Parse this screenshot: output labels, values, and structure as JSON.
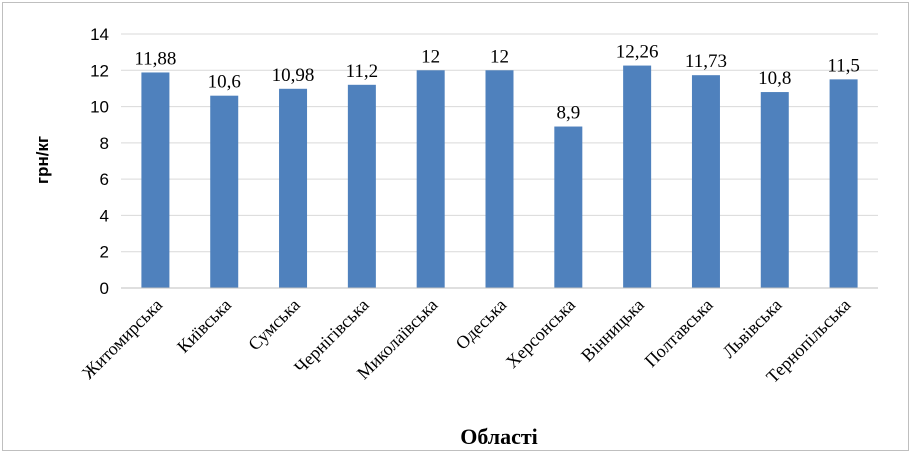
{
  "chart_data": {
    "type": "bar",
    "categories": [
      "Житомирська",
      "Київська",
      "Сумська",
      "Чернігівська",
      "Миколаївська",
      "Одеська",
      "Херсонська",
      "Вінницька",
      "Полтавська",
      "Львівська",
      "Тернопільська"
    ],
    "values": [
      11.88,
      10.6,
      10.98,
      11.2,
      12,
      12,
      8.9,
      12.26,
      11.73,
      10.8,
      11.5
    ],
    "data_labels": [
      "11,88",
      "10,6",
      "10,98",
      "11,2",
      "12",
      "12",
      "8,9",
      "12,26",
      "11,73",
      "10,8",
      "11,5"
    ],
    "ylabel": "грн/кг",
    "xlabel": "Області",
    "ylim": [
      0,
      14
    ],
    "yticks": [
      0,
      2,
      4,
      6,
      8,
      10,
      12,
      14
    ],
    "grid": true,
    "legend": "none",
    "bar_color": "#4f81bd",
    "grid_color": "#d9d9d9"
  }
}
